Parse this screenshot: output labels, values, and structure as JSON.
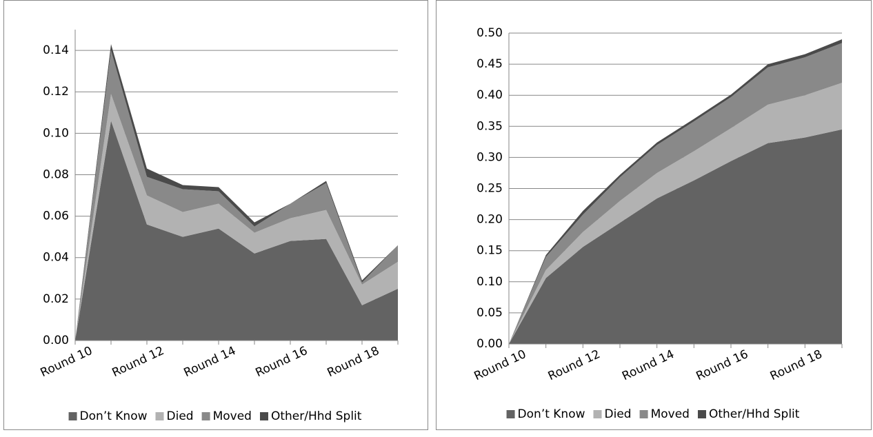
{
  "chart_data": [
    {
      "type": "stacked-area",
      "categories": [
        "Round 10",
        null,
        "Round 12",
        null,
        "Round 14",
        null,
        "Round 16",
        null,
        "Round 18",
        null
      ],
      "series": [
        {
          "name": "Don’t Know",
          "color": "#636363",
          "values": [
            0,
            0.106,
            0.056,
            0.05,
            0.054,
            0.042,
            0.048,
            0.049,
            0.017,
            0.025
          ]
        },
        {
          "name": "Died",
          "color": "#b2b2b2",
          "values": [
            0,
            0.013,
            0.014,
            0.012,
            0.012,
            0.01,
            0.011,
            0.014,
            0.01,
            0.013
          ]
        },
        {
          "name": "Moved",
          "color": "#898989",
          "values": [
            0,
            0.021,
            0.009,
            0.011,
            0.006,
            0.003,
            0.007,
            0.013,
            0.001,
            0.008
          ]
        },
        {
          "name": "Other/Hhd Split",
          "color": "#4a4a4a",
          "values": [
            0,
            0.003,
            0.004,
            0.002,
            0.002,
            0.002,
            0.0,
            0.001,
            0.001,
            0.0
          ]
        }
      ],
      "ylim": [
        0,
        0.15
      ],
      "yticks": [
        {
          "value": 0,
          "label": "0.00"
        },
        0.02,
        0.04,
        0.06,
        0.08,
        {
          "value": 0.1,
          "label": "0.10"
        },
        0.12,
        0.14
      ],
      "grid": true,
      "legend": "bottom"
    },
    {
      "type": "stacked-area",
      "categories": [
        "Round 10",
        null,
        "Round 12",
        null,
        "Round 14",
        null,
        "Round 16",
        null,
        "Round 18",
        null
      ],
      "series": [
        {
          "name": "Don’t Know",
          "color": "#636363",
          "values": [
            0,
            0.106,
            0.156,
            0.195,
            0.234,
            0.263,
            0.294,
            0.323,
            0.332,
            0.345
          ]
        },
        {
          "name": "Died",
          "color": "#b2b2b2",
          "values": [
            0,
            0.013,
            0.024,
            0.035,
            0.041,
            0.047,
            0.053,
            0.062,
            0.068,
            0.075
          ]
        },
        {
          "name": "Moved",
          "color": "#898989",
          "values": [
            0,
            0.021,
            0.028,
            0.038,
            0.045,
            0.048,
            0.05,
            0.06,
            0.061,
            0.064
          ]
        },
        {
          "name": "Other/Hhd Split",
          "color": "#4a4a4a",
          "values": [
            0,
            0.003,
            0.006,
            0.004,
            0.004,
            0.004,
            0.004,
            0.005,
            0.005,
            0.006
          ]
        }
      ],
      "ylim": [
        0,
        0.5
      ],
      "yticks": [
        {
          "value": 0,
          "label": "0.00"
        },
        0.05,
        {
          "value": 0.1,
          "label": "0.10"
        },
        0.15,
        {
          "value": 0.2,
          "label": "0.20"
        },
        0.25,
        {
          "value": 0.3,
          "label": "0.30"
        },
        0.35,
        {
          "value": 0.4,
          "label": "0.40"
        },
        0.45,
        {
          "value": 0.5,
          "label": "0.50"
        }
      ],
      "grid": true,
      "legend": "bottom"
    }
  ]
}
